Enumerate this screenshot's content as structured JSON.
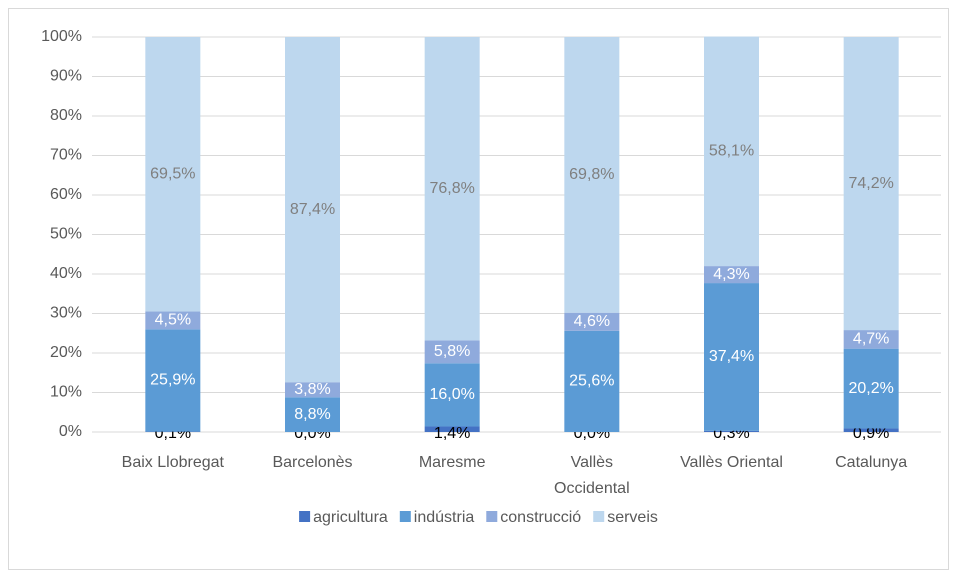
{
  "chart_data": {
    "type": "stacked_bar",
    "categories": [
      "Baix Llobregat",
      "Barcelonès",
      "Maresme",
      "Vallès Occidental",
      "Vallès Oriental",
      "Catalunya"
    ],
    "series": [
      {
        "name": "agricultura",
        "color": "#4472c4",
        "values": [
          0.1,
          0.0,
          1.4,
          0.0,
          0.3,
          0.9
        ],
        "value_labels": [
          "0,1%",
          "0,0%",
          "1,4%",
          "0,0%",
          "0,3%",
          "0,9%"
        ]
      },
      {
        "name": "indústria",
        "color": "#5b9bd5",
        "values": [
          25.9,
          8.8,
          16.0,
          25.6,
          37.4,
          20.2
        ],
        "value_labels": [
          "25,9%",
          "8,8%",
          "16,0%",
          "25,6%",
          "37,4%",
          "20,2%"
        ]
      },
      {
        "name": "construcció",
        "color": "#8faadc",
        "values": [
          4.5,
          3.8,
          5.8,
          4.6,
          4.3,
          4.7
        ],
        "value_labels": [
          "4,5%",
          "3,8%",
          "5,8%",
          "4,6%",
          "4,3%",
          "4,7%"
        ]
      },
      {
        "name": "serveis",
        "color": "#bdd7ee",
        "values": [
          69.5,
          87.4,
          76.8,
          69.8,
          58.1,
          74.2
        ],
        "value_labels": [
          "69,5%",
          "87,4%",
          "76,8%",
          "69,8%",
          "58,1%",
          "74,2%"
        ]
      }
    ],
    "ylim": [
      0,
      100
    ],
    "yticks": [
      {
        "value": 0,
        "label": "0%"
      },
      {
        "value": 10,
        "label": "10%"
      },
      {
        "value": 20,
        "label": "20%"
      },
      {
        "value": 30,
        "label": "30%"
      },
      {
        "value": 40,
        "label": "40%"
      },
      {
        "value": 50,
        "label": "50%"
      },
      {
        "value": 60,
        "label": "60%"
      },
      {
        "value": 70,
        "label": "70%"
      },
      {
        "value": 80,
        "label": "80%"
      },
      {
        "value": 90,
        "label": "90%"
      },
      {
        "value": 100,
        "label": "100%"
      }
    ],
    "grid": true,
    "legend": "bottom"
  }
}
